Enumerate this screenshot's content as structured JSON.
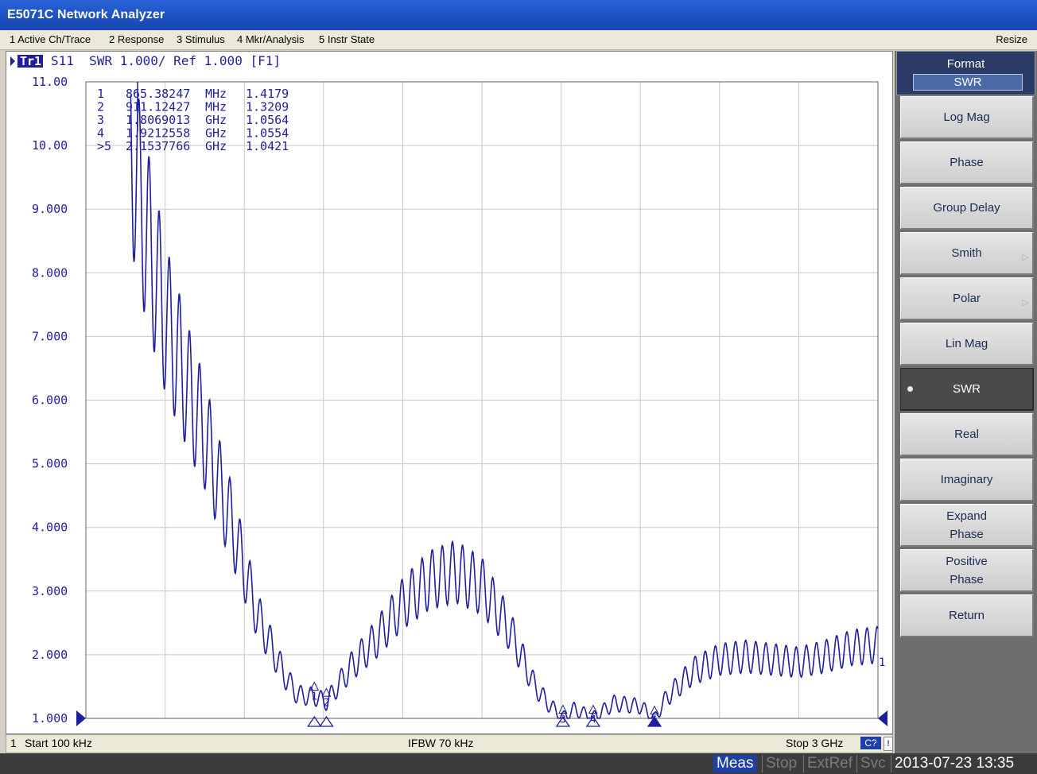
{
  "window": {
    "title": "E5071C Network Analyzer"
  },
  "menu": {
    "items": [
      "1 Active Ch/Trace",
      "2 Response",
      "3 Stimulus",
      "4 Mkr/Analysis",
      "5 Instr State"
    ],
    "resize": "Resize"
  },
  "trace": {
    "id": "Tr1",
    "header": "S11  SWR 1.000/ Ref 1.000 [F1]",
    "colors": {
      "trace": "#1f1f9e",
      "grid": "#c8c8c8",
      "marker": "#1f1f9e"
    }
  },
  "markers": {
    "table": [
      {
        "n": "1",
        "freq": "865.38247",
        "unit": "MHz",
        "val": "1.4179"
      },
      {
        "n": "2",
        "freq": "911.12427",
        "unit": "MHz",
        "val": "1.3209"
      },
      {
        "n": "3",
        "freq": "1.8069013",
        "unit": "GHz",
        "val": "1.0564"
      },
      {
        "n": "4",
        "freq": "1.9212558",
        "unit": "GHz",
        "val": "1.0554"
      },
      {
        "n": ">5",
        "freq": "2.1537766",
        "unit": "GHz",
        "val": "1.0421"
      }
    ]
  },
  "chart_data": {
    "type": "line",
    "title": "",
    "xlabel": "",
    "ylabel": "",
    "xlim_ghz": [
      0.0001,
      3.0
    ],
    "ylim": [
      1.0,
      11.0
    ],
    "y_ticks": [
      "11.00",
      "10.00",
      "9.000",
      "8.000",
      "7.000",
      "6.000",
      "5.000",
      "4.000",
      "3.000",
      "2.000",
      "1.000"
    ],
    "series": [
      {
        "x_ghz": [
          0.17,
          0.2,
          0.25,
          0.3,
          0.35,
          0.4,
          0.45,
          0.5,
          0.55,
          0.6,
          0.65,
          0.7,
          0.75,
          0.8,
          0.85,
          0.8654,
          0.9111,
          1.0,
          1.1,
          1.2,
          1.3,
          1.4,
          1.5,
          1.6,
          1.7,
          1.75,
          1.8069,
          1.85,
          1.9213,
          2.0,
          2.1,
          2.1538,
          2.2,
          2.3,
          2.4,
          2.5,
          2.6,
          2.7,
          2.8,
          2.9,
          3.0
        ],
        "swr": [
          11.0,
          10.0,
          8.9,
          7.9,
          7.2,
          6.5,
          5.9,
          5.1,
          4.4,
          3.6,
          2.8,
          2.3,
          1.8,
          1.45,
          1.42,
          1.42,
          1.32,
          1.9,
          2.4,
          3.0,
          3.4,
          3.55,
          3.3,
          2.6,
          1.6,
          1.3,
          1.06,
          1.2,
          1.06,
          1.3,
          1.25,
          1.04,
          1.4,
          1.85,
          2.05,
          2.1,
          2.05,
          2.0,
          2.1,
          2.25,
          2.3
        ]
      }
    ],
    "markers_ghz": [
      0.8654,
      0.9111,
      1.8069,
      1.9213,
      2.1538
    ],
    "ripple": "yes"
  },
  "status": {
    "channel": "1",
    "start": "Start 100 kHz",
    "ifbw": "IFBW 70 kHz",
    "stop": "Stop 3 GHz",
    "cal": "C?",
    "flag": "!"
  },
  "statusbar": {
    "meas": "Meas",
    "stop": "Stop",
    "extref": "ExtRef",
    "svc": "Svc",
    "datetime": "2013-07-23 13:35"
  },
  "softkeys": {
    "title": "Format",
    "current": "SWR",
    "items": [
      {
        "label": "Log Mag",
        "selected": false,
        "submenu": false
      },
      {
        "label": "Phase",
        "selected": false,
        "submenu": false
      },
      {
        "label": "Group Delay",
        "selected": false,
        "submenu": false
      },
      {
        "label": "Smith",
        "selected": false,
        "submenu": true
      },
      {
        "label": "Polar",
        "selected": false,
        "submenu": true
      },
      {
        "label": "Lin Mag",
        "selected": false,
        "submenu": false
      },
      {
        "label": "SWR",
        "selected": true,
        "submenu": false
      },
      {
        "label": "Real",
        "selected": false,
        "submenu": false
      },
      {
        "label": "Imaginary",
        "selected": false,
        "submenu": false
      },
      {
        "label": "Expand Phase",
        "line1": "Expand",
        "line2": "Phase",
        "selected": false,
        "submenu": false
      },
      {
        "label": "Positive Phase",
        "line1": "Positive",
        "line2": "Phase",
        "selected": false,
        "submenu": false
      },
      {
        "label": "Return",
        "selected": false,
        "submenu": false
      }
    ]
  }
}
